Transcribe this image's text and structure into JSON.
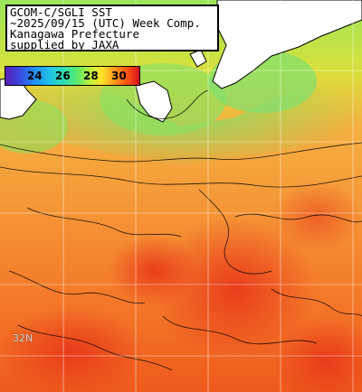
{
  "title_lines": [
    "GCOM-C/SGLI SST",
    "~2025/09/15 (UTC) Week Comp.",
    "Kanagawa Prefecture",
    "supplied by JAXA"
  ],
  "legend": {
    "ticks": [
      "24",
      "26",
      "28",
      "30"
    ],
    "colors": [
      "#5a1fb4",
      "#3a45e0",
      "#1f8ff0",
      "#22c6e6",
      "#2fe0b0",
      "#5ee96a",
      "#c9ef3a",
      "#ffe22a",
      "#ffa41d",
      "#ff5b14",
      "#d4101a"
    ]
  },
  "grid_labels": [
    "32N"
  ],
  "colors": {
    "land": "#ffffff",
    "coast": "#000000",
    "grid": "#ffffff"
  }
}
